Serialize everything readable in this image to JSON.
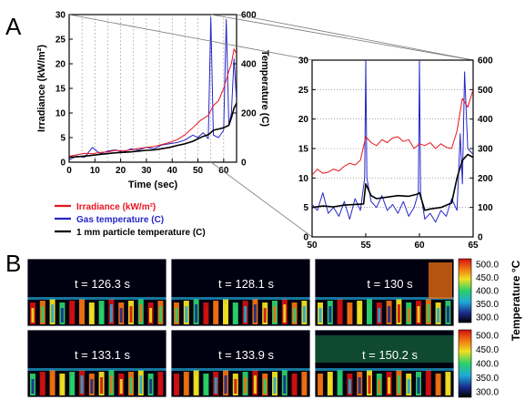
{
  "panel_a_letter": "A",
  "panel_b_letter": "B",
  "legend": [
    {
      "label": "Irradiance (kW/m²)",
      "color": "#e8141e"
    },
    {
      "label": "Gas temperature (C)",
      "color": "#2626c8"
    },
    {
      "label": "1 mm particle temperature (C)",
      "color": "#000000"
    }
  ],
  "colors": {
    "irradiance": "#e8141e",
    "gas": "#2626c8",
    "particle": "#000000"
  },
  "chart_data": [
    {
      "type": "line",
      "xlabel": "Time (sec)",
      "ylabel": "Irradiance (kW/m²)",
      "y2label": "Temperature (C)",
      "xlim": [
        0,
        65
      ],
      "ylim": [
        0,
        30
      ],
      "y2lim": [
        0,
        600
      ],
      "xticks": [
        "0",
        "10",
        "20",
        "30",
        "40",
        "50",
        "60"
      ],
      "yticks": [
        "0",
        "5",
        "10",
        "15",
        "20",
        "25",
        "30"
      ],
      "y2ticks": [
        "0",
        "200",
        "400",
        "600"
      ],
      "grid": "vertical dashed",
      "series": [
        {
          "name": "Irradiance (kW/m²)",
          "axis": "left",
          "x": [
            0,
            3,
            6,
            9,
            12,
            15,
            18,
            21,
            24,
            27,
            30,
            33,
            36,
            39,
            42,
            45,
            48,
            51,
            54,
            56,
            58,
            60,
            62,
            63,
            64,
            65
          ],
          "y": [
            1.2,
            1.5,
            1.8,
            1.7,
            2.0,
            2.1,
            2.4,
            2.3,
            2.5,
            2.8,
            3.0,
            3.2,
            3.6,
            4.0,
            4.6,
            5.6,
            7.0,
            8.5,
            9.5,
            11.5,
            12.5,
            15.0,
            18.5,
            20.0,
            23.0,
            22.0
          ]
        },
        {
          "name": "Gas temperature (C)",
          "axis": "right",
          "x": [
            0,
            3,
            6,
            9,
            12,
            15,
            18,
            21,
            24,
            27,
            30,
            33,
            36,
            39,
            42,
            45,
            48,
            50,
            52,
            54,
            55,
            56,
            58,
            60,
            61,
            62,
            63,
            64,
            65
          ],
          "y": [
            10,
            25,
            20,
            60,
            35,
            45,
            50,
            40,
            55,
            50,
            60,
            55,
            70,
            75,
            80,
            90,
            110,
            100,
            120,
            95,
            590,
            110,
            100,
            130,
            580,
            150,
            200,
            420,
            250
          ]
        },
        {
          "name": "1 mm particle temperature (C)",
          "axis": "right",
          "x": [
            0,
            3,
            6,
            9,
            12,
            15,
            18,
            21,
            24,
            27,
            30,
            33,
            36,
            39,
            42,
            45,
            48,
            50,
            52,
            54,
            55,
            56,
            58,
            60,
            62,
            63,
            64,
            65
          ],
          "y": [
            20,
            22,
            25,
            28,
            32,
            35,
            38,
            40,
            42,
            45,
            48,
            50,
            55,
            60,
            68,
            75,
            85,
            95,
            105,
            112,
            120,
            130,
            135,
            140,
            150,
            180,
            220,
            240
          ]
        }
      ]
    },
    {
      "type": "line",
      "xlim": [
        50,
        65
      ],
      "ylim": [
        0,
        30
      ],
      "y2lim": [
        0,
        600
      ],
      "xticks": [
        "50",
        "55",
        "60",
        "65"
      ],
      "yticks": [
        "0",
        "5",
        "10",
        "15",
        "20",
        "25",
        "30"
      ],
      "y2ticks": [
        "0",
        "100",
        "200",
        "300",
        "400",
        "500",
        "600"
      ],
      "grid": "horizontal dotted",
      "series": [
        {
          "name": "Irradiance (kW/m²)",
          "axis": "left",
          "x": [
            50,
            50.5,
            51,
            51.5,
            52,
            52.5,
            53,
            53.5,
            54,
            54.5,
            55,
            55.5,
            56,
            56.5,
            57,
            57.5,
            58,
            58.5,
            59,
            59.5,
            60,
            60.5,
            61,
            61.5,
            62,
            62.5,
            63,
            63.5,
            64,
            64.5,
            65
          ],
          "y": [
            10.5,
            11.5,
            10.8,
            11.0,
            11.5,
            11.2,
            12.0,
            12.5,
            12.2,
            13.0,
            17.0,
            16.0,
            15.5,
            16.5,
            16.0,
            16.8,
            17.0,
            16.2,
            16.5,
            15.0,
            15.8,
            15.5,
            16.0,
            15.0,
            15.8,
            15.2,
            15.0,
            18.0,
            23.5,
            22.0,
            25.0
          ]
        },
        {
          "name": "Gas temperature (C)",
          "axis": "right",
          "x": [
            50,
            50.5,
            51,
            51.5,
            52,
            52.5,
            53,
            53.5,
            54,
            54.5,
            54.9,
            55,
            55.1,
            55.5,
            56,
            56.5,
            57,
            57.5,
            58,
            58.5,
            59,
            59.5,
            59.9,
            60,
            60.1,
            60.5,
            61,
            61.5,
            62,
            62.5,
            63,
            63.5,
            63.8,
            64,
            64.2,
            64.5,
            65
          ],
          "y": [
            110,
            90,
            150,
            80,
            100,
            70,
            120,
            60,
            130,
            90,
            200,
            600,
            200,
            120,
            100,
            140,
            90,
            110,
            80,
            120,
            70,
            100,
            150,
            600,
            150,
            60,
            80,
            50,
            90,
            70,
            130,
            90,
            350,
            180,
            560,
            300,
            280
          ]
        },
        {
          "name": "1 mm particle temperature (C)",
          "axis": "right",
          "x": [
            50,
            51,
            52,
            53,
            54,
            54.8,
            55,
            55.5,
            56,
            57,
            58,
            59,
            59.8,
            60,
            60.5,
            61,
            62,
            63,
            63.5,
            64,
            64.5,
            65
          ],
          "y": [
            100,
            105,
            102,
            108,
            110,
            112,
            180,
            140,
            130,
            135,
            140,
            138,
            145,
            150,
            90,
            95,
            100,
            115,
            200,
            260,
            280,
            270
          ]
        }
      ]
    }
  ],
  "heatmaps": [
    {
      "label": "t = 126.3 s"
    },
    {
      "label": "t = 128.1 s"
    },
    {
      "label": "t = 130 s"
    },
    {
      "label": "t = 133.1 s"
    },
    {
      "label": "t = 133.9 s"
    },
    {
      "label": "t = 150.2 s"
    }
  ],
  "colorbars": [
    {
      "ticks": [
        "500.0",
        "450.0",
        "400.0",
        "350.0",
        "300.0"
      ]
    },
    {
      "ticks": [
        "500.0",
        "450.0",
        "400.0",
        "350.0",
        "300.0"
      ]
    }
  ],
  "colorbar_title": "Temperature °C"
}
